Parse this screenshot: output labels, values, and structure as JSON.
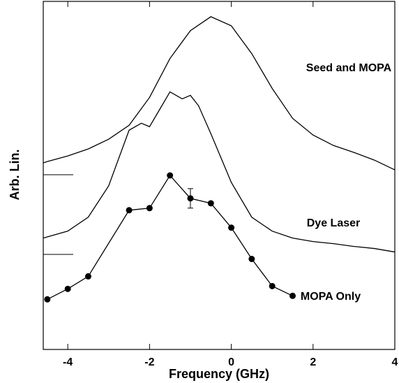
{
  "chart_data": {
    "type": "line",
    "x_label": "Frequency (GHz)",
    "y_label": "Arb. Lin.",
    "xlim": [
      -4.6,
      4
    ],
    "xticks": [
      -4,
      -2,
      0,
      2,
      4
    ],
    "ylim": [
      0,
      100
    ],
    "series": [
      {
        "name": "Seed and MOPA",
        "color": "#000000",
        "marker": "none",
        "x": [
          -4.6,
          -4.5,
          -4,
          -3.5,
          -3,
          -2.5,
          -2,
          -1.5,
          -1,
          -0.5,
          0,
          0.5,
          1,
          1.5,
          2,
          2.5,
          3,
          3.5,
          4
        ],
        "values": [
          53.6,
          54,
          55.6,
          57.6,
          60.4,
          64.4,
          72.4,
          83.6,
          91.6,
          95.6,
          93,
          85,
          75,
          66.4,
          61.6,
          58.6,
          56.6,
          54.4,
          51.6
        ]
      },
      {
        "name": "Dye Laser",
        "color": "#000000",
        "marker": "none",
        "x": [
          -4.6,
          -4,
          -3.5,
          -3,
          -2.5,
          -2.2,
          -2,
          -1.8,
          -1.5,
          -1.2,
          -1,
          -0.8,
          -0.5,
          0,
          0.5,
          1,
          1.5,
          2,
          2.5,
          3,
          3.5,
          4
        ],
        "values": [
          32,
          34,
          38,
          47,
          63,
          65,
          64,
          68,
          74,
          72,
          73,
          70,
          62,
          48,
          38,
          34,
          32,
          31,
          30.4,
          29.6,
          29,
          28
        ]
      },
      {
        "name": "MOPA Only",
        "color": "#000000",
        "marker": "circle",
        "x": [
          -4.5,
          -4,
          -3.5,
          -2.5,
          -2,
          -1.5,
          -1,
          -0.5,
          0,
          0.5,
          1,
          1.5
        ],
        "values": [
          14.4,
          17.4,
          21,
          40,
          40.6,
          50,
          43.4,
          42,
          35,
          26,
          18.2,
          15.4
        ],
        "errors": [
          null,
          null,
          null,
          null,
          null,
          null,
          2.8,
          null,
          null,
          null,
          null,
          null
        ]
      }
    ]
  }
}
